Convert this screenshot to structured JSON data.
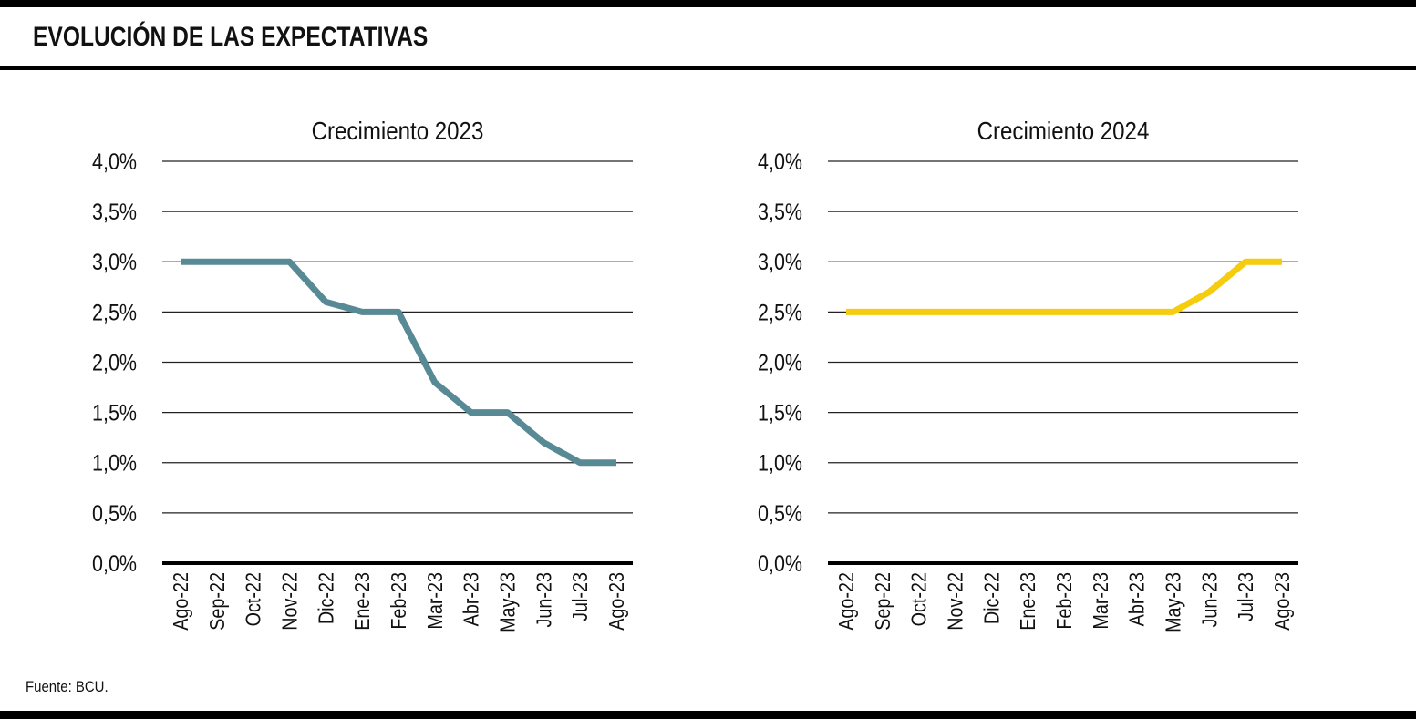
{
  "header": {
    "title": "EVOLUCIÓN DE LAS EXPECTATIVAS"
  },
  "footer": {
    "source": "Fuente: BCU."
  },
  "chart_data": [
    {
      "type": "line",
      "title": "Crecimiento 2023",
      "xlabel": "",
      "ylabel": "",
      "categories": [
        "Ago-22",
        "Sep-22",
        "Oct-22",
        "Nov-22",
        "Dic-22",
        "Ene-23",
        "Feb-23",
        "Mar-23",
        "Abr-23",
        "May-23",
        "Jun-23",
        "Jul-23",
        "Ago-23"
      ],
      "series": [
        {
          "values": [
            3.0,
            3.0,
            3.0,
            3.0,
            2.6,
            2.5,
            2.5,
            1.8,
            1.5,
            1.5,
            1.2,
            1.0,
            1.0
          ],
          "color": "#588a96"
        }
      ],
      "y_ticks": [
        "0,0%",
        "0,5%",
        "1,0%",
        "1,5%",
        "2,0%",
        "2,5%",
        "3,0%",
        "3,5%",
        "4,0%"
      ],
      "ylim": [
        0,
        4
      ],
      "grid": true,
      "legend": "none"
    },
    {
      "type": "line",
      "title": "Crecimiento 2024",
      "xlabel": "",
      "ylabel": "",
      "categories": [
        "Ago-22",
        "Sep-22",
        "Oct-22",
        "Nov-22",
        "Dic-22",
        "Ene-23",
        "Feb-23",
        "Mar-23",
        "Abr-23",
        "May-23",
        "Jun-23",
        "Jul-23",
        "Ago-23"
      ],
      "series": [
        {
          "values": [
            2.5,
            2.5,
            2.5,
            2.5,
            2.5,
            2.5,
            2.5,
            2.5,
            2.5,
            2.5,
            2.7,
            3.0,
            3.0
          ],
          "color": "#f5cc0e"
        }
      ],
      "y_ticks": [
        "0,0%",
        "0,5%",
        "1,0%",
        "1,5%",
        "2,0%",
        "2,5%",
        "3,0%",
        "3,5%",
        "4,0%"
      ],
      "ylim": [
        0,
        4
      ],
      "grid": true,
      "legend": "none"
    }
  ]
}
